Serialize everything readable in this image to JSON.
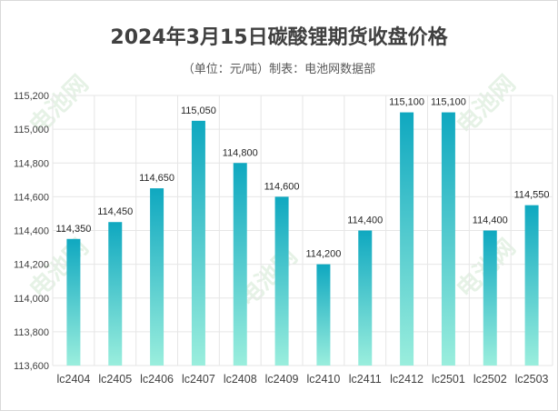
{
  "chart_data": {
    "type": "bar",
    "title": "2024年3月15日碳酸锂期货收盘价格",
    "subtitle": "（单位：元/吨）制表：电池网数据部",
    "categories": [
      "lc2404",
      "lc2405",
      "lc2406",
      "lc2407",
      "lc2408",
      "lc2409",
      "lc2410",
      "lc2411",
      "lc2412",
      "lc2501",
      "lc2502",
      "lc2503"
    ],
    "values": [
      114350,
      114450,
      114650,
      115050,
      114800,
      114600,
      114200,
      114400,
      115100,
      115100,
      114400,
      114550
    ],
    "value_labels": [
      "114,350",
      "114,450",
      "114,650",
      "115,050",
      "114,800",
      "114,600",
      "114,200",
      "114,400",
      "115,100",
      "115,100",
      "114,400",
      "114,550"
    ],
    "ylim": [
      113600,
      115200
    ],
    "yticks": [
      113600,
      113800,
      114000,
      114200,
      114400,
      114600,
      114800,
      115000,
      115200
    ],
    "ytick_labels": [
      "113,600",
      "113,800",
      "114,000",
      "114,200",
      "114,400",
      "114,600",
      "114,800",
      "115,000",
      "115,200"
    ],
    "grid": true,
    "legend": "none",
    "colors": {
      "bar_top": "#0fa8c0",
      "bar_bottom": "#9aeedd",
      "grid": "#e6e6e6"
    },
    "watermark": "电池网 itdcw.com"
  }
}
